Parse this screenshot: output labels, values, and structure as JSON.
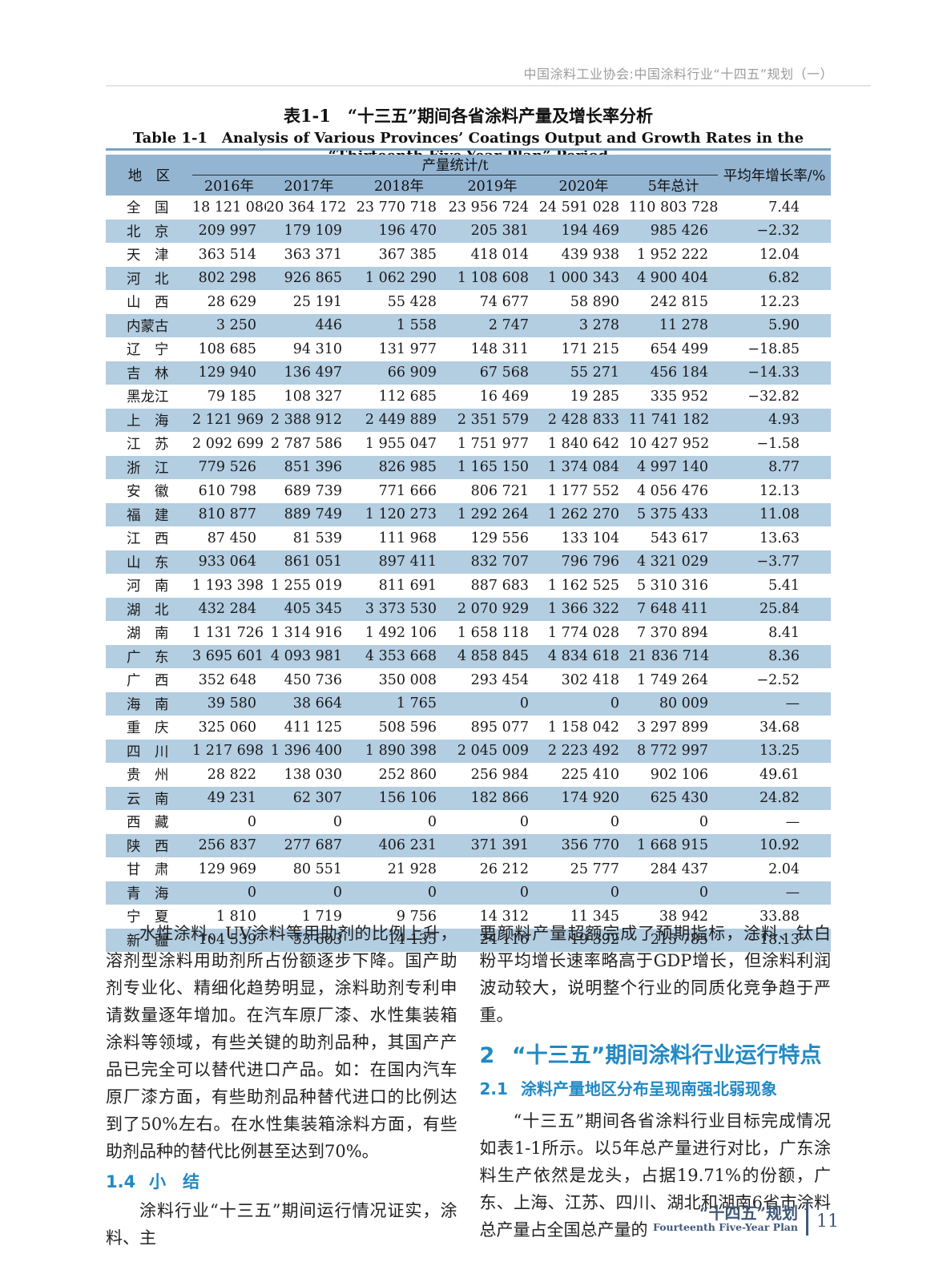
{
  "page_header": {
    "text": "中国涂料工业协会:中国涂料行业“十四五”规划（一）"
  },
  "table": {
    "title_zh": "表1-1　“十三五”期间各省涂料产量及增长率分析",
    "title_en": "Table 1-1　Analysis of Various Provinces’ Coatings Output and Growth Rates in the “Thirteenth Five-Year Plan” Period",
    "header": {
      "region": "地　区",
      "output_group": "产量统计/t",
      "growth": "平均年增长率/%",
      "years": [
        "2016年",
        "2017年",
        "2018年",
        "2019年",
        "2020年",
        "5年总计"
      ]
    },
    "rows": [
      {
        "region": "全　国",
        "values": [
          "18 121 086",
          "20 364 172",
          "23 770 718",
          "23 956 724",
          "24 591 028",
          "110 803 728"
        ],
        "growth": "7.44"
      },
      {
        "region": "北　京",
        "values": [
          "209 997",
          "179 109",
          "196 470",
          "205 381",
          "194 469",
          "985 426"
        ],
        "growth": "−2.32"
      },
      {
        "region": "天　津",
        "values": [
          "363 514",
          "363 371",
          "367 385",
          "418 014",
          "439 938",
          "1 952 222"
        ],
        "growth": "12.04"
      },
      {
        "region": "河　北",
        "values": [
          "802 298",
          "926 865",
          "1 062 290",
          "1 108 608",
          "1 000 343",
          "4 900 404"
        ],
        "growth": "6.82"
      },
      {
        "region": "山　西",
        "values": [
          "28 629",
          "25 191",
          "55 428",
          "74 677",
          "58 890",
          "242 815"
        ],
        "growth": "12.23"
      },
      {
        "region": "内蒙古",
        "values": [
          "3 250",
          "446",
          "1 558",
          "2 747",
          "3 278",
          "11 278"
        ],
        "growth": "5.90"
      },
      {
        "region": "辽　宁",
        "values": [
          "108 685",
          "94 310",
          "131 977",
          "148 311",
          "171 215",
          "654 499"
        ],
        "growth": "−18.85"
      },
      {
        "region": "吉　林",
        "values": [
          "129 940",
          "136 497",
          "66 909",
          "67 568",
          "55 271",
          "456 184"
        ],
        "growth": "−14.33"
      },
      {
        "region": "黑龙江",
        "values": [
          "79 185",
          "108 327",
          "112 685",
          "16 469",
          "19 285",
          "335 952"
        ],
        "growth": "−32.82"
      },
      {
        "region": "上　海",
        "values": [
          "2 121 969",
          "2 388 912",
          "2 449 889",
          "2 351 579",
          "2 428 833",
          "11 741 182"
        ],
        "growth": "4.93"
      },
      {
        "region": "江　苏",
        "values": [
          "2 092 699",
          "2 787 586",
          "1 955 047",
          "1 751 977",
          "1 840 642",
          "10 427 952"
        ],
        "growth": "−1.58"
      },
      {
        "region": "浙　江",
        "values": [
          "779 526",
          "851 396",
          "826 985",
          "1 165 150",
          "1 374 084",
          "4 997 140"
        ],
        "growth": "8.77"
      },
      {
        "region": "安　徽",
        "values": [
          "610 798",
          "689 739",
          "771 666",
          "806 721",
          "1 177 552",
          "4 056 476"
        ],
        "growth": "12.13"
      },
      {
        "region": "福　建",
        "values": [
          "810 877",
          "889 749",
          "1 120 273",
          "1 292 264",
          "1 262 270",
          "5 375 433"
        ],
        "growth": "11.08"
      },
      {
        "region": "江　西",
        "values": [
          "87 450",
          "81 539",
          "111 968",
          "129 556",
          "133 104",
          "543 617"
        ],
        "growth": "13.63"
      },
      {
        "region": "山　东",
        "values": [
          "933 064",
          "861 051",
          "897 411",
          "832 707",
          "796 796",
          "4 321 029"
        ],
        "growth": "−3.77"
      },
      {
        "region": "河　南",
        "values": [
          "1 193 398",
          "1 255 019",
          "811 691",
          "887 683",
          "1 162 525",
          "5 310 316"
        ],
        "growth": "5.41"
      },
      {
        "region": "湖　北",
        "values": [
          "432 284",
          "405 345",
          "3 373 530",
          "2 070 929",
          "1 366 322",
          "7 648 411"
        ],
        "growth": "25.84"
      },
      {
        "region": "湖　南",
        "values": [
          "1 131 726",
          "1 314 916",
          "1 492 106",
          "1 658 118",
          "1 774 028",
          "7 370 894"
        ],
        "growth": "8.41"
      },
      {
        "region": "广　东",
        "values": [
          "3 695 601",
          "4 093 981",
          "4 353 668",
          "4 858 845",
          "4 834 618",
          "21 836 714"
        ],
        "growth": "8.36"
      },
      {
        "region": "广　西",
        "values": [
          "352 648",
          "450 736",
          "350 008",
          "293 454",
          "302 418",
          "1 749 264"
        ],
        "growth": "−2.52"
      },
      {
        "region": "海　南",
        "values": [
          "39 580",
          "38 664",
          "1 765",
          "0",
          "0",
          "80 009"
        ],
        "growth": "—"
      },
      {
        "region": "重　庆",
        "values": [
          "325 060",
          "411 125",
          "508 596",
          "895 077",
          "1 158 042",
          "3 297 899"
        ],
        "growth": "34.68"
      },
      {
        "region": "四　川",
        "values": [
          "1 217 698",
          "1 396 400",
          "1 890 398",
          "2 045 009",
          "2 223 492",
          "8 772 997"
        ],
        "growth": "13.25"
      },
      {
        "region": "贵　州",
        "values": [
          "28 822",
          "138 030",
          "252 860",
          "256 984",
          "225 410",
          "902 106"
        ],
        "growth": "49.61"
      },
      {
        "region": "云　南",
        "values": [
          "49 231",
          "62 307",
          "156 106",
          "182 866",
          "174 920",
          "625 430"
        ],
        "growth": "24.82"
      },
      {
        "region": "西　藏",
        "values": [
          "0",
          "0",
          "0",
          "0",
          "0",
          "0"
        ],
        "growth": "—"
      },
      {
        "region": "陕　西",
        "values": [
          "256 837",
          "277 687",
          "406 231",
          "371 391",
          "356 770",
          "1 668 915"
        ],
        "growth": "10.92"
      },
      {
        "region": "甘　肃",
        "values": [
          "129 969",
          "80 551",
          "21 928",
          "26 212",
          "25 777",
          "284 437"
        ],
        "growth": "2.04"
      },
      {
        "region": "青　海",
        "values": [
          "0",
          "0",
          "0",
          "0",
          "0",
          "0"
        ],
        "growth": "—"
      },
      {
        "region": "宁　夏",
        "values": [
          "1 810",
          "1 719",
          "9 756",
          "14 312",
          "11 345",
          "38 942"
        ],
        "growth": "33.88"
      },
      {
        "region": "新　疆",
        "values": [
          "104 539",
          "53 603",
          "14 135",
          "24 116",
          "19 392",
          "215 785"
        ],
        "growth": "−18.13"
      }
    ]
  },
  "sections": {
    "left_paragraph": "水性涂料、UV涂料等用助剂的比例上升，溶剂型涂料用助剂所占份额逐步下降。国产助剂专业化、精细化趋势明显，涂料助剂专利申请数量逐年增加。在汽车原厂漆、水性集装箱涂料等领域，有些关键的助剂品种，其国产产品已完全可以替代进口产品。如：在国内汽车原厂漆方面，有些助剂品种替代进口的比例达到了50%左右。在水性集装箱涂料方面，有些助剂品种的替代比例甚至达到70%。",
    "sec_1_4": {
      "num": "1.4",
      "title": "小　结"
    },
    "sec_1_4_paragraph": "涂料行业“十三五”期间运行情况证实，涂料、主",
    "right_paragraph": "要颜料产量超额完成了预期指标，涂料、钛白粉平均增长速率略高于GDP增长，但涂料利润波动较大，说明整个行业的同质化竞争趋于严重。",
    "sec_2": {
      "num": "2",
      "title": "“十三五”期间涂料行业运行特点"
    },
    "sec_2_1": {
      "num": "2.1",
      "title": "涂料产量地区分布呈现南强北弱现象"
    },
    "sec_2_1_paragraph": "“十三五”期间各省涂料行业目标完成情况如表1-1所示。以5年总产量进行对比，广东涂料生产依然是龙头，占据19.71%的份额，广东、上海、江苏、四川、湖北和湖南6省市涂料总产量占全国总产量的"
  },
  "footer": {
    "brand_zh": "“十四五”规划",
    "brand_en": "Fourteenth Five-Year Plan",
    "page_number": "11"
  },
  "colors": {
    "table_header_bg": "#94b5d2",
    "row_stripe_bg": "#b3cde1",
    "table_topline": "#7ba1bf",
    "heading_blue": "#2189c4",
    "footer_slate": "#40597a",
    "header_gray": "#9c9c9c"
  }
}
